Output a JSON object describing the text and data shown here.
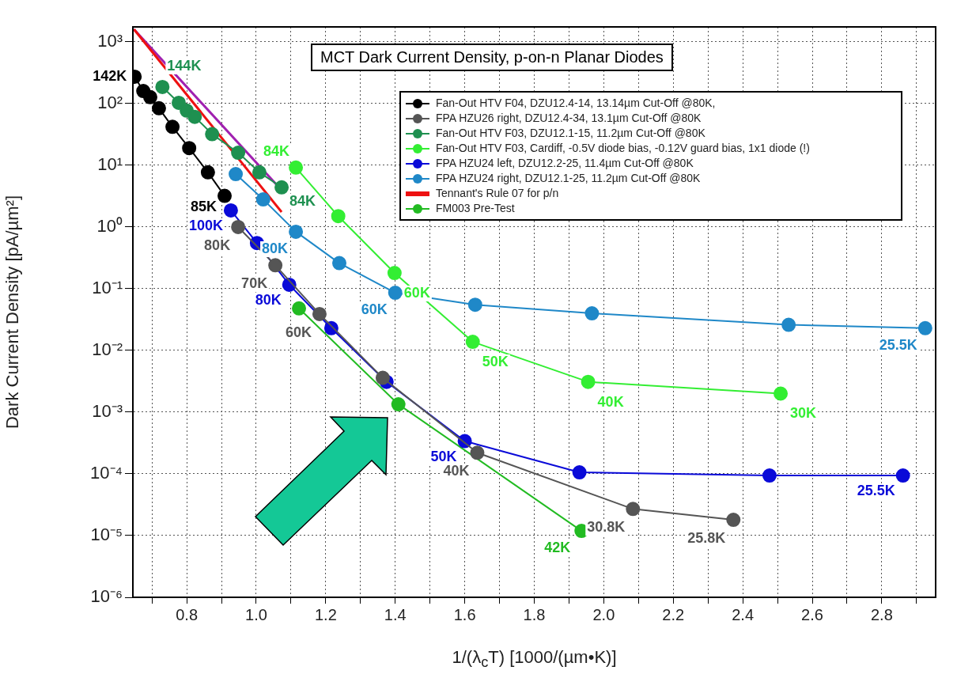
{
  "chart_data": {
    "type": "line",
    "title": "MCT Dark Current Density, p-on-n Planar Diodes",
    "xlabel": "1/(λ$_{c}$T) [1000/(µm•K)]",
    "ylabel": "Dark Current Density [pA/µm²]",
    "log": "y",
    "grid": true,
    "legend": "top right",
    "marker": "circle",
    "xlim": [
      0.645,
      2.955
    ],
    "ylim": [
      1e-06,
      1750
    ],
    "xticks": [
      {
        "value": 0.7,
        "label": null
      },
      {
        "value": 0.8,
        "label": "0.8"
      },
      {
        "value": 0.9,
        "label": null
      },
      {
        "value": 1.0,
        "label": "1.0"
      },
      {
        "value": 1.1,
        "label": null
      },
      {
        "value": 1.2,
        "label": "1.2"
      },
      {
        "value": 1.3,
        "label": null
      },
      {
        "value": 1.4,
        "label": "1.4"
      },
      {
        "value": 1.5,
        "label": null
      },
      {
        "value": 1.6,
        "label": "1.6"
      },
      {
        "value": 1.7,
        "label": null
      },
      {
        "value": 1.8,
        "label": "1.8"
      },
      {
        "value": 1.9,
        "label": null
      },
      {
        "value": 2.0,
        "label": "2.0"
      },
      {
        "value": 2.1,
        "label": null
      },
      {
        "value": 2.2,
        "label": "2.2"
      },
      {
        "value": 2.3,
        "label": null
      },
      {
        "value": 2.4,
        "label": "2.4"
      },
      {
        "value": 2.5,
        "label": null
      },
      {
        "value": 2.6,
        "label": "2.6"
      },
      {
        "value": 2.7,
        "label": null
      },
      {
        "value": 2.8,
        "label": "2.8"
      },
      {
        "value": 2.9,
        "label": null
      }
    ],
    "yticks": [
      {
        "value": 1000,
        "label": "10³"
      },
      {
        "value": 100,
        "label": "10²"
      },
      {
        "value": 10,
        "label": "10¹"
      },
      {
        "value": 1,
        "label": "10⁰"
      },
      {
        "value": 0.1,
        "label": "10⁻¹"
      },
      {
        "value": 0.01,
        "label": "10⁻²"
      },
      {
        "value": 0.001,
        "label": "10⁻³"
      },
      {
        "value": 0.0001,
        "label": "10⁻⁴"
      },
      {
        "value": 1e-05,
        "label": "10⁻⁵"
      },
      {
        "value": 1e-06,
        "label": "10⁻⁶"
      }
    ],
    "series": [
      {
        "name": "Fan-Out HTV F04, DZU12.4-14, 13.14µm Cut-Off @80K,",
        "color": "#000000",
        "x": [
          0.65,
          0.675,
          0.695,
          0.72,
          0.759,
          0.807,
          0.861,
          0.909
        ],
        "values": [
          273,
          160,
          127,
          84,
          42,
          19,
          7.7,
          3.2
        ]
      },
      {
        "name": "FPA HZU26 right, DZU12.4-34, 13.1µm Cut-Off @80K",
        "color": "#555555",
        "x": [
          0.948,
          1.055,
          1.182,
          1.364,
          1.636,
          2.084,
          2.373
        ],
        "values": [
          1.0,
          0.24,
          0.039,
          0.0036,
          0.00022,
          2.7e-05,
          1.8e-05
        ]
      },
      {
        "name": "Fan-Out HTV F03, DZU12.1-15, 11.2µm Cut-Off @80K",
        "color": "#1e9050",
        "x": [
          0.73,
          0.777,
          0.8,
          0.823,
          0.873,
          0.948,
          1.009,
          1.073
        ],
        "values": [
          186,
          103,
          77,
          61,
          32,
          16,
          7.7,
          4.4
        ]
      },
      {
        "name": "Fan-Out HTV F03, Cardiff, -0.5V diode bias, -0.12V guard bias, 1x1 diode (!)",
        "color": "#33ee33",
        "x": [
          1.114,
          1.236,
          1.398,
          1.623,
          1.955,
          2.509
        ],
        "values": [
          9.2,
          1.5,
          0.18,
          0.0138,
          0.0031,
          0.002
        ]
      },
      {
        "name": "FPA HZU24 left, DZU12.2-25, 11.4µm Cut-Off @80K",
        "color": "#0a0ad8",
        "x": [
          0.927,
          1.002,
          1.095,
          1.216,
          1.375,
          1.6,
          1.93,
          2.477,
          2.861
        ],
        "values": [
          1.86,
          0.55,
          0.116,
          0.023,
          0.0031,
          0.00034,
          0.000106,
          9.4e-05,
          9.4e-05
        ]
      },
      {
        "name": "FPA HZU24 right, DZU12.1-25, 11.2µm Cut-Off @80K",
        "color": "#1f88c8",
        "x": [
          0.941,
          1.02,
          1.114,
          1.239,
          1.4,
          1.63,
          1.966,
          2.532,
          2.925
        ],
        "values": [
          7.2,
          2.8,
          0.84,
          0.26,
          0.086,
          0.055,
          0.04,
          0.026,
          0.023
        ]
      },
      {
        "name": "Tennant's Rule 07 for p/n",
        "color": "#ee1111",
        "marker": "none",
        "x": [
          0.648,
          1.073
        ],
        "values": [
          1600,
          1.75
        ]
      },
      {
        "name": "FM003 Pre-Test",
        "color": "#22bb22",
        "x": [
          1.123,
          1.409,
          1.936
        ],
        "values": [
          0.048,
          0.00134,
          1.19e-05
        ]
      },
      {
        "color": "#a020b0",
        "marker": "none",
        "x": [
          0.648,
          1.068
        ],
        "values": [
          1600,
          4.25
        ]
      }
    ],
    "annotations": [
      {
        "text": "142K",
        "x": 0.65,
        "y": 273
      },
      {
        "text": "85K",
        "x": 0.909,
        "y": 3.2
      },
      {
        "text": "80K",
        "x": 0.948,
        "y": 1.0
      },
      {
        "text": "70K",
        "x": 1.055,
        "y": 0.24
      },
      {
        "text": "60K",
        "x": 1.182,
        "y": 0.039
      },
      {
        "text": "40K",
        "x": 1.636,
        "y": 0.00022
      },
      {
        "text": "30.8K",
        "x": 2.084,
        "y": 2.7e-05
      },
      {
        "text": "25.8K",
        "x": 2.373,
        "y": 1.8e-05
      },
      {
        "text": "144K",
        "x": 0.73,
        "y": 186
      },
      {
        "text": "84K",
        "x": 1.073,
        "y": 4.4
      },
      {
        "text": "84K",
        "x": 1.114,
        "y": 9.2
      },
      {
        "text": "60K",
        "x": 1.398,
        "y": 0.18
      },
      {
        "text": "50K",
        "x": 1.623,
        "y": 0.0138
      },
      {
        "text": "40K",
        "x": 1.955,
        "y": 0.0031
      },
      {
        "text": "30K",
        "x": 2.509,
        "y": 0.002
      },
      {
        "text": "100K",
        "x": 0.927,
        "y": 1.86
      },
      {
        "text": "80K",
        "x": 1.095,
        "y": 0.116
      },
      {
        "text": "50K",
        "x": 1.6,
        "y": 0.00034
      },
      {
        "text": "25.5K",
        "x": 2.861,
        "y": 9.4e-05
      },
      {
        "text": "80K",
        "x": 1.114,
        "y": 0.84
      },
      {
        "text": "60K",
        "x": 1.4,
        "y": 0.086
      },
      {
        "text": "25.5K",
        "x": 2.925,
        "y": 0.023
      },
      {
        "text": "42K",
        "x": 1.936,
        "y": 1.19e-05
      }
    ]
  }
}
